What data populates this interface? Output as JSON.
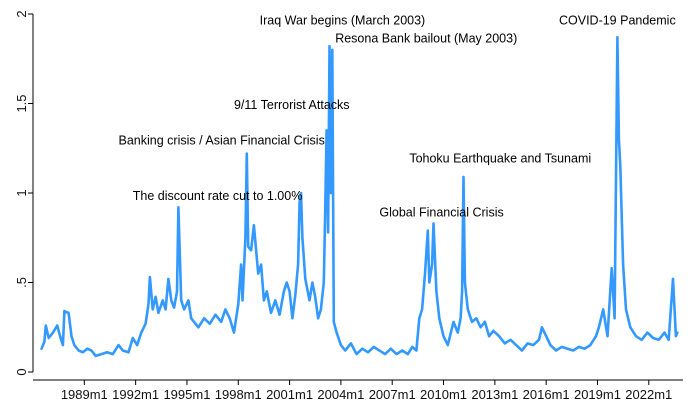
{
  "chart_data": {
    "type": "line",
    "title": "",
    "xlabel": "",
    "ylabel": "",
    "xlim": [
      "1986m1",
      "2024m1"
    ],
    "ylim": [
      0,
      2
    ],
    "grid": false,
    "line_color": "#3399ff",
    "x_ticks": [
      "1989m1",
      "1992m1",
      "1995m1",
      "1998m1",
      "2001m1",
      "2004m1",
      "2007m1",
      "2010m1",
      "2013m1",
      "2016m1",
      "2019m1",
      "2022m1"
    ],
    "y_ticks": [
      {
        "value": 0,
        "label": "0"
      },
      {
        "value": 0.5,
        "label": ".5"
      },
      {
        "value": 1,
        "label": "1"
      },
      {
        "value": 1.5,
        "label": "1.5"
      },
      {
        "value": 2,
        "label": "2"
      }
    ],
    "series": [
      {
        "points": [
          [
            "1986m7",
            0.13
          ],
          [
            "1986m9",
            0.17
          ],
          [
            "1986m10",
            0.26
          ],
          [
            "1986m12",
            0.19
          ],
          [
            "1987m3",
            0.22
          ],
          [
            "1987m6",
            0.26
          ],
          [
            "1987m8",
            0.2
          ],
          [
            "1987m10",
            0.15
          ],
          [
            "1987m11",
            0.34
          ],
          [
            "1988m2",
            0.33
          ],
          [
            "1988m4",
            0.2
          ],
          [
            "1988m6",
            0.15
          ],
          [
            "1988m9",
            0.12
          ],
          [
            "1988m12",
            0.11
          ],
          [
            "1989m3",
            0.13
          ],
          [
            "1989m6",
            0.12
          ],
          [
            "1989m9",
            0.09
          ],
          [
            "1990m1",
            0.1
          ],
          [
            "1990m5",
            0.11
          ],
          [
            "1990m9",
            0.1
          ],
          [
            "1991m1",
            0.15
          ],
          [
            "1991m4",
            0.12
          ],
          [
            "1991m8",
            0.11
          ],
          [
            "1991m11",
            0.19
          ],
          [
            "1992m2",
            0.15
          ],
          [
            "1992m5",
            0.22
          ],
          [
            "1992m8",
            0.27
          ],
          [
            "1992m10",
            0.38
          ],
          [
            "1992m11",
            0.53
          ],
          [
            "1993m1",
            0.35
          ],
          [
            "1993m3",
            0.42
          ],
          [
            "1993m5",
            0.33
          ],
          [
            "1993m8",
            0.4
          ],
          [
            "1993m10",
            0.35
          ],
          [
            "1993m12",
            0.52
          ],
          [
            "1994m2",
            0.4
          ],
          [
            "1994m4",
            0.36
          ],
          [
            "1994m6",
            0.45
          ],
          [
            "1994m7",
            0.92
          ],
          [
            "1994m9",
            0.4
          ],
          [
            "1994m11",
            0.35
          ],
          [
            "1995m2",
            0.4
          ],
          [
            "1995m4",
            0.3
          ],
          [
            "1995m6",
            0.28
          ],
          [
            "1995m9",
            0.25
          ],
          [
            "1996m1",
            0.3
          ],
          [
            "1996m5",
            0.27
          ],
          [
            "1996m9",
            0.32
          ],
          [
            "1997m1",
            0.28
          ],
          [
            "1997m4",
            0.35
          ],
          [
            "1997m7",
            0.3
          ],
          [
            "1997m10",
            0.22
          ],
          [
            "1998m1",
            0.38
          ],
          [
            "1998m3",
            0.6
          ],
          [
            "1998m4",
            0.4
          ],
          [
            "1998m6",
            0.75
          ],
          [
            "1998m7",
            1.22
          ],
          [
            "1998m8",
            0.7
          ],
          [
            "1998m10",
            0.68
          ],
          [
            "1998m12",
            0.82
          ],
          [
            "1999m3",
            0.55
          ],
          [
            "1999m5",
            0.6
          ],
          [
            "1999m7",
            0.4
          ],
          [
            "1999m9",
            0.45
          ],
          [
            "1999m12",
            0.33
          ],
          [
            "2000m3",
            0.4
          ],
          [
            "2000m6",
            0.32
          ],
          [
            "2000m9",
            0.45
          ],
          [
            "2000m11",
            0.5
          ],
          [
            "2001m1",
            0.45
          ],
          [
            "2001m3",
            0.3
          ],
          [
            "2001m5",
            0.43
          ],
          [
            "2001m7",
            0.6
          ],
          [
            "2001m8",
            0.95
          ],
          [
            "2001m9",
            1.0
          ],
          [
            "2001m10",
            0.75
          ],
          [
            "2001m12",
            0.52
          ],
          [
            "2002m3",
            0.4
          ],
          [
            "2002m5",
            0.5
          ],
          [
            "2002m7",
            0.42
          ],
          [
            "2002m9",
            0.3
          ],
          [
            "2002m11",
            0.35
          ],
          [
            "2003m1",
            0.5
          ],
          [
            "2003m2",
            0.9
          ],
          [
            "2003m3",
            1.35
          ],
          [
            "2003m4",
            0.78
          ],
          [
            "2003m5",
            1.82
          ],
          [
            "2003m6",
            1.0
          ],
          [
            "2003m7",
            1.8
          ],
          [
            "2003m8",
            0.28
          ],
          [
            "2003m10",
            0.22
          ],
          [
            "2004m1",
            0.15
          ],
          [
            "2004m4",
            0.12
          ],
          [
            "2004m8",
            0.16
          ],
          [
            "2004m12",
            0.1
          ],
          [
            "2005m4",
            0.13
          ],
          [
            "2005m8",
            0.11
          ],
          [
            "2005m12",
            0.14
          ],
          [
            "2006m4",
            0.12
          ],
          [
            "2006m8",
            0.1
          ],
          [
            "2006m12",
            0.13
          ],
          [
            "2007m4",
            0.1
          ],
          [
            "2007m8",
            0.12
          ],
          [
            "2007m12",
            0.1
          ],
          [
            "2008m3",
            0.14
          ],
          [
            "2008m6",
            0.12
          ],
          [
            "2008m8",
            0.3
          ],
          [
            "2008m10",
            0.35
          ],
          [
            "2008m12",
            0.55
          ],
          [
            "2009m2",
            0.79
          ],
          [
            "2009m3",
            0.5
          ],
          [
            "2009m5",
            0.6
          ],
          [
            "2009m6",
            0.83
          ],
          [
            "2009m8",
            0.45
          ],
          [
            "2009m10",
            0.3
          ],
          [
            "2010m1",
            0.2
          ],
          [
            "2010m4",
            0.15
          ],
          [
            "2010m8",
            0.28
          ],
          [
            "2010m11",
            0.22
          ],
          [
            "2011m1",
            0.3
          ],
          [
            "2011m2",
            0.45
          ],
          [
            "2011m3",
            1.09
          ],
          [
            "2011m4",
            0.5
          ],
          [
            "2011m6",
            0.35
          ],
          [
            "2011m9",
            0.28
          ],
          [
            "2011m12",
            0.3
          ],
          [
            "2012m3",
            0.25
          ],
          [
            "2012m6",
            0.28
          ],
          [
            "2012m9",
            0.2
          ],
          [
            "2012m12",
            0.23
          ],
          [
            "2013m4",
            0.2
          ],
          [
            "2013m8",
            0.16
          ],
          [
            "2013m12",
            0.18
          ],
          [
            "2014m4",
            0.15
          ],
          [
            "2014m8",
            0.12
          ],
          [
            "2014m12",
            0.16
          ],
          [
            "2015m4",
            0.15
          ],
          [
            "2015m8",
            0.18
          ],
          [
            "2015m10",
            0.25
          ],
          [
            "2016m1",
            0.2
          ],
          [
            "2016m4",
            0.15
          ],
          [
            "2016m8",
            0.12
          ],
          [
            "2016m12",
            0.14
          ],
          [
            "2017m4",
            0.13
          ],
          [
            "2017m8",
            0.12
          ],
          [
            "2017m12",
            0.14
          ],
          [
            "2018m4",
            0.13
          ],
          [
            "2018m8",
            0.15
          ],
          [
            "2018m12",
            0.2
          ],
          [
            "2019m2",
            0.25
          ],
          [
            "2019m5",
            0.35
          ],
          [
            "2019m8",
            0.2
          ],
          [
            "2019m11",
            0.58
          ],
          [
            "2020m1",
            0.3
          ],
          [
            "2020m3",
            1.87
          ],
          [
            "2020m4",
            1.3
          ],
          [
            "2020m5",
            1.15
          ],
          [
            "2020m7",
            0.6
          ],
          [
            "2020m9",
            0.35
          ],
          [
            "2020m12",
            0.25
          ],
          [
            "2021m4",
            0.2
          ],
          [
            "2021m8",
            0.18
          ],
          [
            "2021m12",
            0.22
          ],
          [
            "2022m4",
            0.19
          ],
          [
            "2022m8",
            0.18
          ],
          [
            "2022m12",
            0.22
          ],
          [
            "2023m3",
            0.18
          ],
          [
            "2023m6",
            0.52
          ],
          [
            "2023m8",
            0.2
          ],
          [
            "2023m9",
            0.22
          ]
        ]
      }
    ],
    "annotations": [
      {
        "text": "The discount rate cut to 1.00%",
        "x": "1991m11",
        "y": 0.96
      },
      {
        "text": "Banking crisis / Asian Financial Crisis",
        "x": "1991m1",
        "y": 1.27
      },
      {
        "text": "9/11 Terrorist Attacks",
        "x": "1997m10",
        "y": 1.47
      },
      {
        "text": "Iraq War begins (March 2003)",
        "x": "1999m4",
        "y": 1.94
      },
      {
        "text": "Resona Bank bailout (May 2003)",
        "x": "2003m9",
        "y": 1.84
      },
      {
        "text": "Tohoku Earthquake and Tsunami",
        "x": "2008m1",
        "y": 1.17
      },
      {
        "text": "Global Financial Crisis",
        "x": "2006m4",
        "y": 0.87
      },
      {
        "text": "COVID-19 Pandemic",
        "x": "2016m10",
        "y": 1.94
      }
    ]
  }
}
